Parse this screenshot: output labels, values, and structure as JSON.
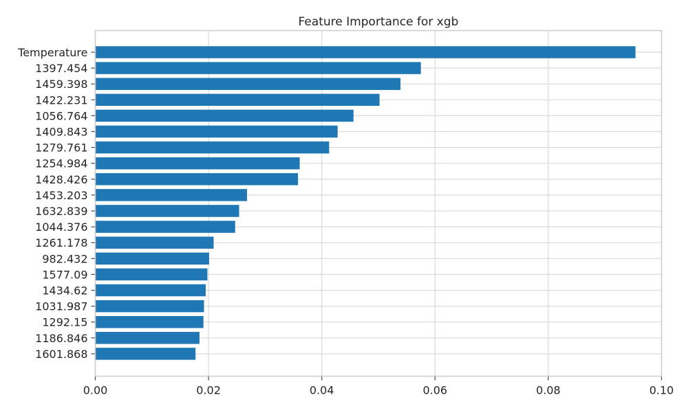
{
  "chart_data": {
    "type": "bar",
    "orientation": "horizontal",
    "title": "Feature Importance for xgb",
    "xlabel": "",
    "ylabel": "",
    "xlim": [
      0,
      0.1
    ],
    "x_ticks": [
      "0.00",
      "0.02",
      "0.04",
      "0.06",
      "0.08",
      "0.10"
    ],
    "grid": true,
    "bar_color": "#1f77b4",
    "categories": [
      "Temperature",
      "1397.454",
      "1459.398",
      "1422.231",
      "1056.764",
      "1409.843",
      "1279.761",
      "1254.984",
      "1428.426",
      "1453.203",
      "1632.839",
      "1044.376",
      "1261.178",
      "982.432",
      "1577.09",
      "1434.62",
      "1031.987",
      "1292.15",
      "1186.846",
      "1601.868"
    ],
    "values": [
      0.0954,
      0.0575,
      0.0539,
      0.0502,
      0.0456,
      0.0428,
      0.0413,
      0.0361,
      0.0358,
      0.0268,
      0.0254,
      0.0247,
      0.0209,
      0.0201,
      0.0198,
      0.0195,
      0.0192,
      0.0191,
      0.0184,
      0.0177
    ]
  }
}
